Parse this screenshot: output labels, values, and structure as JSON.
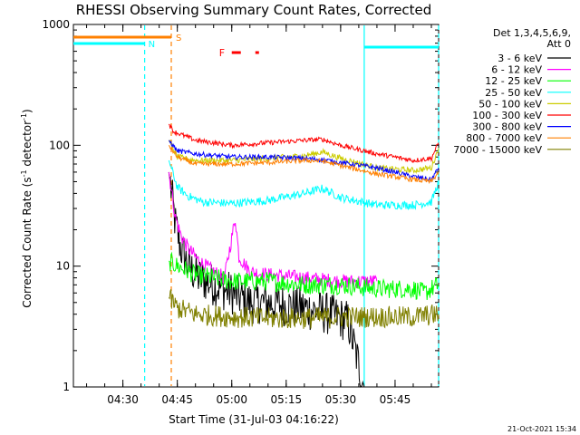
{
  "chart_data": {
    "type": "line",
    "title": "RHESSI Observing Summary Count Rates, Corrected",
    "xlabel": "Start Time (31-Jul-03 04:16:22)",
    "ylabel": "Corrected Count Rate (s",
    "ylabel_sup1": "-1",
    "ylabel_mid": " detector",
    "ylabel_sup2": "-1",
    "ylabel_end": ")",
    "y_scale": "log",
    "ylim": [
      1,
      1000
    ],
    "xlim": [
      "04:16:22",
      "05:57:00"
    ],
    "x_ticks": [
      "04:30",
      "04:45",
      "05:00",
      "05:15",
      "05:30",
      "05:45"
    ],
    "y_ticks": [
      "1",
      "10",
      "100",
      "1000"
    ],
    "grid": false,
    "legend_position": "top-right",
    "legend_header": [
      "Det 1,3,4,5,6,9,",
      "Att 0"
    ],
    "series": [
      {
        "name": "3 - 6 keV",
        "color": "#000000",
        "x": [
          "04:42:40",
          "04:44:30",
          "04:46:00",
          "04:48:00",
          "04:51:00",
          "04:55:00",
          "05:00:00",
          "05:05:00",
          "05:10:00",
          "05:20:00",
          "05:27:00",
          "05:32:00",
          "05:36:30"
        ],
        "y": [
          60,
          22,
          14,
          10,
          8,
          7,
          6,
          5,
          5,
          4.5,
          4,
          3.5,
          1
        ]
      },
      {
        "name": "6 - 12 keV",
        "color": "#ff00ff",
        "x": [
          "04:42:40",
          "04:44:30",
          "04:46:00",
          "04:48:00",
          "04:51:00",
          "04:55:00",
          "04:58:00",
          "05:01:00",
          "05:02:00",
          "05:05:00",
          "05:10:00",
          "05:20:00",
          "05:30:00",
          "05:40:00"
        ],
        "y": [
          60,
          25,
          18,
          14,
          11,
          9,
          8,
          25,
          12,
          9,
          8.5,
          8,
          7.5,
          7.5
        ]
      },
      {
        "name": "12 - 25 keV",
        "color": "#00ff00",
        "x": [
          "04:42:40",
          "04:45:00",
          "04:50:00",
          "04:55:00",
          "05:00:00",
          "05:10:00",
          "05:20:00",
          "05:30:00",
          "05:40:00",
          "05:50:00",
          "05:53:00",
          "05:57:00"
        ],
        "y": [
          11,
          10,
          8.5,
          8,
          7.5,
          7.5,
          7,
          7,
          6.5,
          6.5,
          6,
          7
        ]
      },
      {
        "name": "25 - 50 keV",
        "color": "#00ffff",
        "x": [
          "04:42:40",
          "04:45:00",
          "04:48:00",
          "04:52:00",
          "05:00:00",
          "05:10:00",
          "05:20:00",
          "05:25:00",
          "05:30:00",
          "05:40:00",
          "05:50:00",
          "05:55:00",
          "05:57:00"
        ],
        "y": [
          75,
          45,
          38,
          34,
          33,
          35,
          40,
          44,
          37,
          32,
          32,
          34,
          50
        ]
      },
      {
        "name": "50 - 100 keV",
        "color": "#cccc00",
        "x": [
          "04:42:40",
          "04:45:00",
          "04:50:00",
          "05:00:00",
          "05:10:00",
          "05:20:00",
          "05:25:00",
          "05:30:00",
          "05:40:00",
          "05:50:00",
          "05:55:00",
          "05:57:00"
        ],
        "y": [
          110,
          80,
          75,
          75,
          78,
          82,
          88,
          78,
          65,
          62,
          65,
          95
        ]
      },
      {
        "name": "100 - 300 keV",
        "color": "#ff0000",
        "x": [
          "04:42:40",
          "04:44:00",
          "04:50:00",
          "05:00:00",
          "05:10:00",
          "05:20:00",
          "05:25:00",
          "05:30:00",
          "05:40:00",
          "05:50:00",
          "05:55:00",
          "05:57:00"
        ],
        "y": [
          150,
          130,
          110,
          100,
          105,
          110,
          112,
          100,
          85,
          75,
          78,
          105
        ]
      },
      {
        "name": "300 - 800 keV",
        "color": "#0000ff",
        "x": [
          "04:42:40",
          "04:45:00",
          "04:50:00",
          "05:00:00",
          "05:10:00",
          "05:20:00",
          "05:25:00",
          "05:30:00",
          "05:40:00",
          "05:50:00",
          "05:55:00",
          "05:57:00"
        ],
        "y": [
          110,
          90,
          85,
          80,
          80,
          78,
          76,
          72,
          65,
          55,
          52,
          65
        ]
      },
      {
        "name": "800 - 7000 keV",
        "color": "#ff8000",
        "x": [
          "04:42:40",
          "04:45:00",
          "04:50:00",
          "05:00:00",
          "05:10:00",
          "05:20:00",
          "05:25:00",
          "05:30:00",
          "05:40:00",
          "05:50:00",
          "05:55:00",
          "05:57:00"
        ],
        "y": [
          100,
          80,
          70,
          70,
          72,
          75,
          74,
          68,
          58,
          52,
          50,
          60
        ]
      },
      {
        "name": "7000 - 15000 keV",
        "color": "#808000",
        "x": [
          "04:42:40",
          "04:45:00",
          "04:50:00",
          "05:00:00",
          "05:10:00",
          "05:20:00",
          "05:30:00",
          "05:40:00",
          "05:50:00",
          "05:57:00"
        ],
        "y": [
          5.5,
          4.5,
          4,
          3.8,
          3.7,
          3.7,
          3.8,
          3.8,
          3.8,
          4
        ]
      }
    ],
    "annotations": [
      {
        "label": "S",
        "color": "#ff8000",
        "bar_from": "04:16:22",
        "bar_to": "04:43:20",
        "marker_x": "04:43:20"
      },
      {
        "label": "N",
        "color": "#00ffff",
        "bar_from": "04:16:22",
        "bar_to": "04:36:00",
        "marker_x": "04:36:00"
      },
      {
        "label": "F",
        "color": "#ff0000",
        "segments": [
          [
            "05:00:00",
            "05:02:30"
          ],
          [
            "05:06:30",
            "05:07:30"
          ]
        ]
      }
    ],
    "vertical_lines": [
      {
        "x": "04:36:00",
        "color": "#00ffff",
        "style": "dashed"
      },
      {
        "x": "04:43:20",
        "color": "#ff8000",
        "style": "dashed"
      },
      {
        "x": "05:36:30",
        "color": "#00ffff",
        "style": "solid"
      },
      {
        "x": "05:57:00",
        "color": "#00ffff",
        "style": "dashed"
      }
    ],
    "cyan_top_right_bar": {
      "x_from": "05:36:30",
      "x_to": "05:57:00",
      "y": 650
    },
    "footer_date": "21-Oct-2021 15:34"
  }
}
